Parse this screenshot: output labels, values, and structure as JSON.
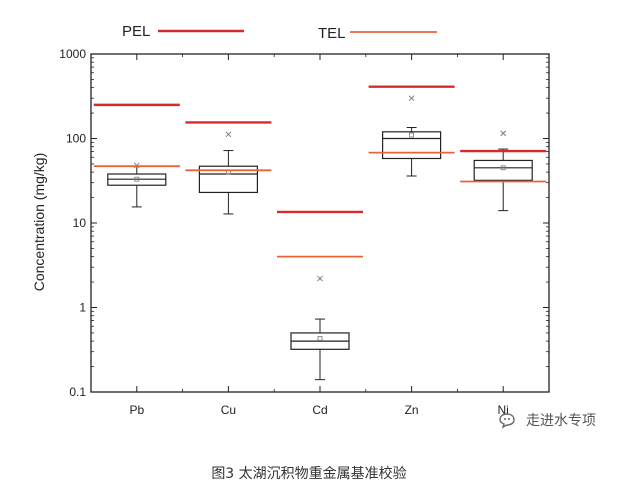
{
  "chart_data": {
    "type": "box",
    "ylabel": "Concentration (mg/kg)",
    "yscale": "log",
    "ylim": [
      0.1,
      1000
    ],
    "yticks": [
      "0.1",
      "1",
      "10",
      "100",
      "1000"
    ],
    "categories": [
      "Pb",
      "Cu",
      "Cd",
      "Zn",
      "Ni"
    ],
    "boxes": [
      {
        "name": "Pb",
        "whisker_low": 15.5,
        "q1": 28,
        "median": 33,
        "q3": 38,
        "whisker_high": 47,
        "mean": 33,
        "outlier": 48
      },
      {
        "name": "Cu",
        "whisker_low": 12.8,
        "q1": 23,
        "median": 38,
        "q3": 47,
        "whisker_high": 72,
        "mean": 40,
        "outlier": 112
      },
      {
        "name": "Cd",
        "whisker_low": 0.14,
        "q1": 0.32,
        "median": 0.4,
        "q3": 0.5,
        "whisker_high": 0.73,
        "mean": 0.43,
        "outlier": 2.2
      },
      {
        "name": "Zn",
        "whisker_low": 36,
        "q1": 58,
        "median": 100,
        "q3": 120,
        "whisker_high": 135,
        "mean": 110,
        "outlier": 300
      },
      {
        "name": "Ni",
        "whisker_low": 14,
        "q1": 32,
        "median": 45,
        "q3": 55,
        "whisker_high": 75,
        "mean": 45,
        "outlier": 115
      }
    ],
    "reference_lines": {
      "PEL": {
        "label": "PEL",
        "color": "#d62b2b",
        "values": [
          250,
          155,
          13.5,
          410,
          71
        ]
      },
      "TEL": {
        "label": "TEL",
        "color": "#e8623a",
        "values": [
          47,
          42,
          4.0,
          68,
          31
        ]
      }
    },
    "legend_position": "top"
  },
  "caption": "图3  太湖沉积物重金属基准校验",
  "watermark": "走进水专项"
}
